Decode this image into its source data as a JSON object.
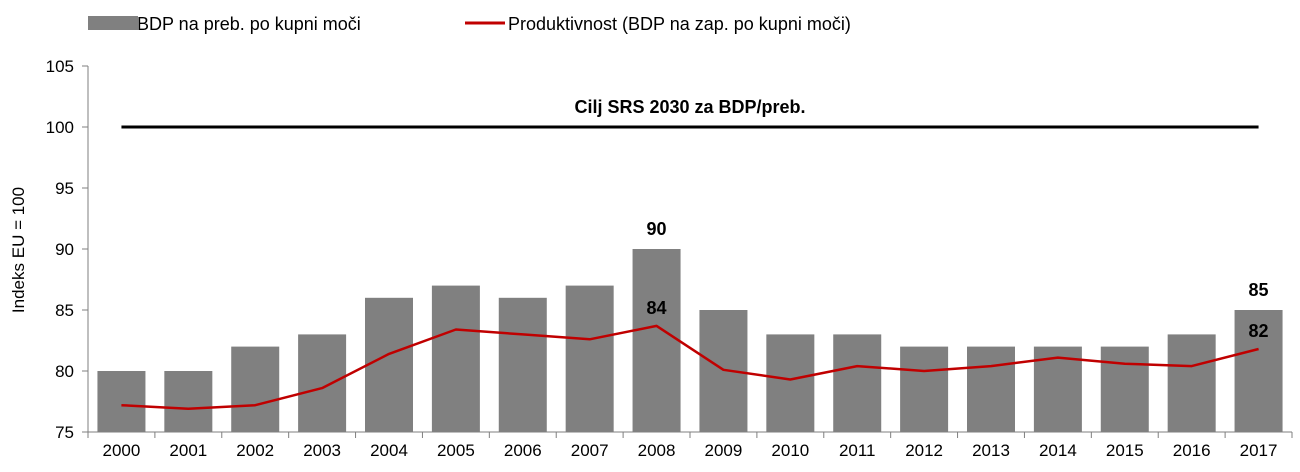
{
  "chart_data": {
    "type": "bar",
    "ylabel": "Indeks EU = 100",
    "ylim": [
      75,
      105
    ],
    "yticks": [
      75,
      80,
      85,
      90,
      95,
      100,
      105
    ],
    "grid": false,
    "legend_position": "top-left",
    "categories": [
      "2000",
      "2001",
      "2002",
      "2003",
      "2004",
      "2005",
      "2006",
      "2007",
      "2008",
      "2009",
      "2010",
      "2011",
      "2012",
      "2013",
      "2014",
      "2015",
      "2016",
      "2017"
    ],
    "series": [
      {
        "name": "BDP na preb. po kupni moči",
        "type": "bar",
        "color": "#808080",
        "values": [
          80,
          80,
          82,
          83,
          86,
          87,
          86,
          87,
          90,
          85,
          83,
          83,
          82,
          82,
          82,
          82,
          83,
          85
        ]
      },
      {
        "name": "Produktivnost (BDP na zap. po kupni moči)",
        "type": "line",
        "color": "#c00000",
        "values": [
          77.2,
          76.9,
          77.2,
          78.6,
          81.4,
          83.4,
          83.0,
          82.6,
          83.7,
          80.1,
          79.3,
          80.4,
          80.0,
          80.4,
          81.1,
          80.6,
          80.4,
          81.8
        ]
      }
    ],
    "target": {
      "label": "Cilj SRS 2030 za BDP/preb.",
      "value": 100,
      "color": "#000000"
    },
    "data_labels": [
      {
        "series": 0,
        "index": 8,
        "text": "90"
      },
      {
        "series": 1,
        "index": 8,
        "text": "84"
      },
      {
        "series": 0,
        "index": 17,
        "text": "85"
      },
      {
        "series": 1,
        "index": 17,
        "text": "82"
      }
    ]
  }
}
